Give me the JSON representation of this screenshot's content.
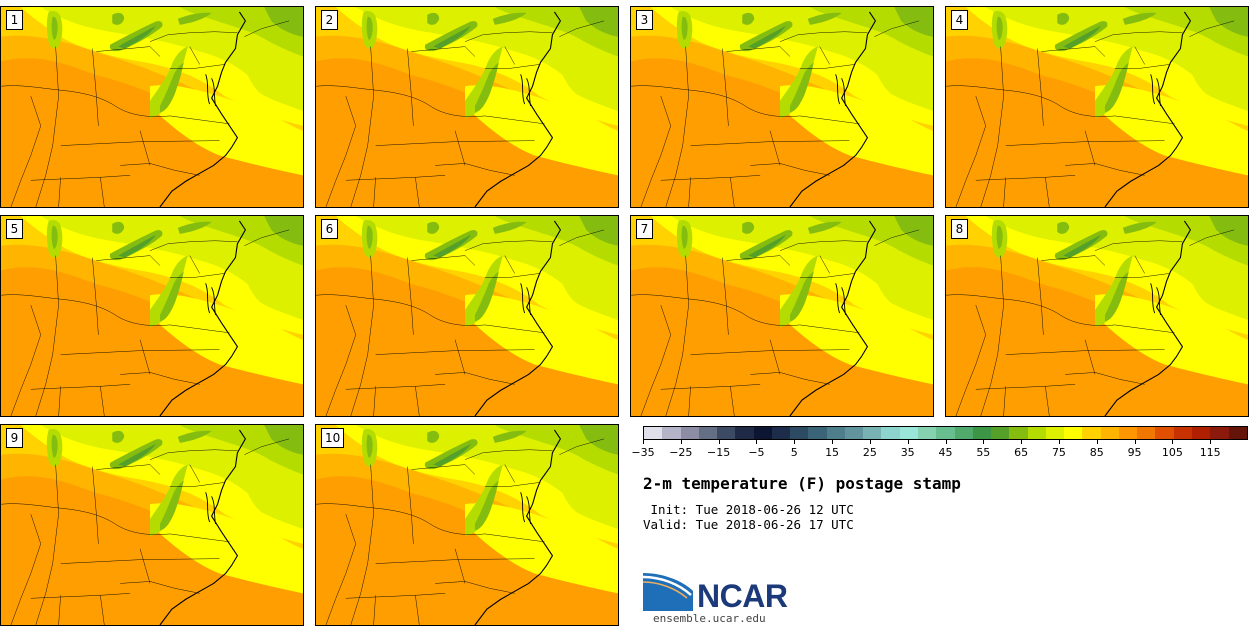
{
  "panels": [
    {
      "label": "1"
    },
    {
      "label": "2"
    },
    {
      "label": "3"
    },
    {
      "label": "4"
    },
    {
      "label": "5"
    },
    {
      "label": "6"
    },
    {
      "label": "7"
    },
    {
      "label": "8"
    },
    {
      "label": "9"
    },
    {
      "label": "10"
    }
  ],
  "colorbar": {
    "colors": [
      "#e0e0ea",
      "#b4b4c8",
      "#8c8ca4",
      "#646e84",
      "#3c4a64",
      "#1e2a46",
      "#0c1632",
      "#1c2c4a",
      "#2c4a62",
      "#3c6478",
      "#4e7e8c",
      "#62949e",
      "#78b2b2",
      "#8cd4cc",
      "#9ae6d8",
      "#86d2b0",
      "#68be8e",
      "#50aa6c",
      "#3c9646",
      "#54a028",
      "#84bc10",
      "#b4dc00",
      "#dcf000",
      "#ffff00",
      "#ffd200",
      "#ffb400",
      "#ff9600",
      "#f07800",
      "#e05000",
      "#c83200",
      "#b02000",
      "#8c1a0c",
      "#641408"
    ],
    "ticks": [
      "−35",
      "−25",
      "−15",
      "−5",
      "5",
      "15",
      "25",
      "35",
      "45",
      "55",
      "65",
      "75",
      "85",
      "95",
      "105",
      "115"
    ]
  },
  "title": "2-m temperature (F) postage stamp",
  "init": " Init: Tue 2018-06-26 12 UTC",
  "valid": "Valid: Tue 2018-06-26 17 UTC",
  "logo": {
    "text": "NCAR",
    "url_text": "ensemble.ucar.edu"
  }
}
